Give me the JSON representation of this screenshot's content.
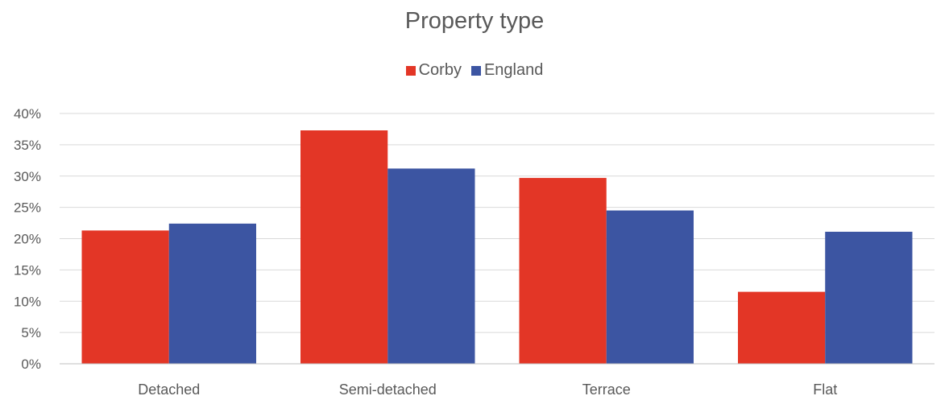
{
  "chart_data": {
    "type": "bar",
    "title": "Property type",
    "xlabel": "",
    "ylabel": "",
    "categories": [
      "Detached",
      "Semi-detached",
      "Terrace",
      "Flat"
    ],
    "series": [
      {
        "name": "Corby",
        "values": [
          21.3,
          37.3,
          29.7,
          11.5
        ],
        "color": "#E33626"
      },
      {
        "name": "England",
        "values": [
          22.4,
          31.2,
          24.5,
          21.1
        ],
        "color": "#3C55A2"
      }
    ],
    "ylim": [
      0,
      40
    ],
    "yticks": [
      0,
      5,
      10,
      15,
      20,
      25,
      30,
      35,
      40
    ],
    "ytick_format": "percent",
    "grid": true,
    "gridline_color": "#D9D9D9",
    "legend_position": "top"
  }
}
